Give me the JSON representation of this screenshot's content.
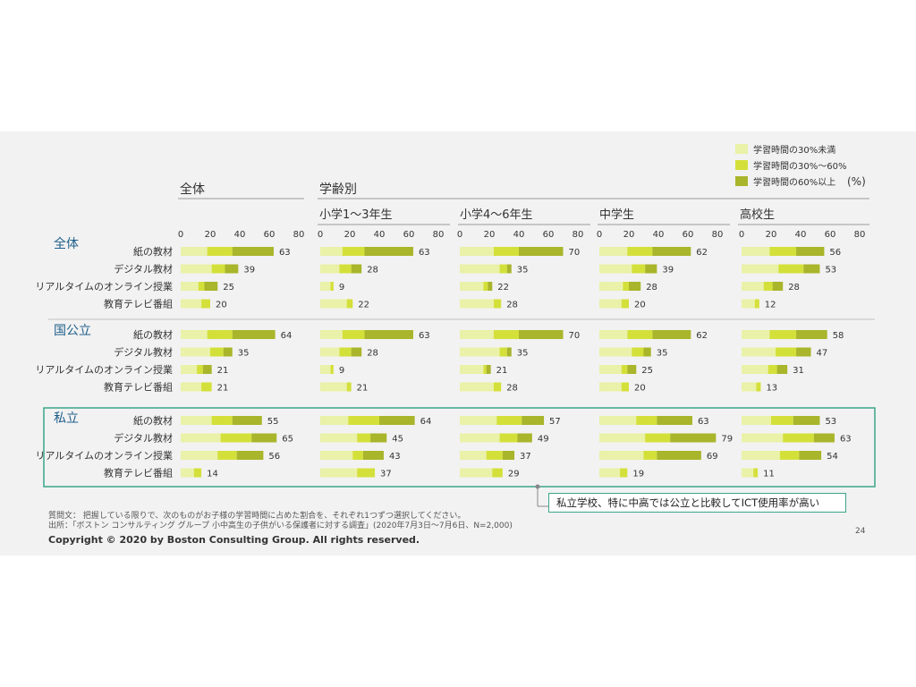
{
  "unit": "(%)",
  "header": {
    "overall": "全体",
    "by_grade": "学齢別"
  },
  "legend": [
    {
      "label": "学習時間の30%未満",
      "color": "#eaf1a8"
    },
    {
      "label": "学習時間の30%〜60%",
      "color": "#d4e03a"
    },
    {
      "label": "学習時間の60%以上",
      "color": "#a9b52a"
    }
  ],
  "callout": "私立学校、特に中高では公立と比較してICT使用率が高い",
  "footer": {
    "question": "質問文： 把握している限りで、次のものがお子様の学習時間に占めた割合を、それぞれ1つずつ選択してください。",
    "source": "出所：「ボストン コンサルティング グループ 小中高生の子供がいる保護者に対する調査」(2020年7月3日〜7月6日、N=2,000)",
    "copyright": "Copyright © 2020 by Boston Consulting Group. All rights reserved.",
    "page": "24"
  },
  "chart_data": {
    "type": "bar",
    "stacked": true,
    "orientation": "horizontal",
    "xlim": [
      0,
      80
    ],
    "ticks": [
      "0",
      "20",
      "40",
      "60",
      "80"
    ],
    "columns": [
      "全体",
      "小学1〜3年生",
      "小学4〜6年生",
      "中学生",
      "高校生"
    ],
    "groups": [
      "全体",
      "国公立",
      "私立"
    ],
    "categories": [
      "紙の教材",
      "デジタル教材",
      "リアルタイムのオンライン授業",
      "教育テレビ番組"
    ],
    "totals": [
      [
        [
          63,
          39,
          25,
          20
        ],
        [
          63,
          28,
          9,
          22
        ],
        [
          70,
          35,
          22,
          28
        ],
        [
          62,
          39,
          28,
          20
        ],
        [
          56,
          53,
          28,
          12
        ]
      ],
      [
        [
          64,
          35,
          21,
          21
        ],
        [
          63,
          28,
          9,
          21
        ],
        [
          70,
          35,
          21,
          28
        ],
        [
          62,
          35,
          25,
          20
        ],
        [
          58,
          47,
          31,
          13
        ]
      ],
      [
        [
          55,
          65,
          56,
          14
        ],
        [
          64,
          45,
          43,
          37
        ],
        [
          57,
          49,
          37,
          29
        ],
        [
          63,
          79,
          69,
          19
        ],
        [
          53,
          63,
          54,
          11
        ]
      ]
    ],
    "segments": [
      [
        [
          [
            18,
            17,
            28
          ],
          [
            21,
            9,
            9
          ],
          [
            12,
            4,
            9
          ],
          [
            14,
            6,
            0
          ]
        ],
        [
          [
            15,
            15,
            33
          ],
          [
            13,
            8,
            7
          ],
          [
            7,
            2,
            0
          ],
          [
            18,
            4,
            0
          ]
        ],
        [
          [
            23,
            17,
            30
          ],
          [
            27,
            5,
            3
          ],
          [
            16,
            3,
            3
          ],
          [
            23,
            5,
            0
          ]
        ],
        [
          [
            19,
            17,
            26
          ],
          [
            22,
            9,
            8
          ],
          [
            16,
            4,
            8
          ],
          [
            15,
            5,
            0
          ]
        ],
        [
          [
            19,
            18,
            19
          ],
          [
            25,
            17,
            11
          ],
          [
            15,
            6,
            7
          ],
          [
            9,
            3,
            0
          ]
        ]
      ],
      [
        [
          [
            18,
            17,
            29
          ],
          [
            20,
            9,
            6
          ],
          [
            11,
            4,
            6
          ],
          [
            14,
            7,
            0
          ]
        ],
        [
          [
            15,
            15,
            33
          ],
          [
            13,
            8,
            7
          ],
          [
            7,
            2,
            0
          ],
          [
            18,
            3,
            0
          ]
        ],
        [
          [
            23,
            17,
            30
          ],
          [
            27,
            5,
            3
          ],
          [
            16,
            2,
            3
          ],
          [
            23,
            5,
            0
          ]
        ],
        [
          [
            19,
            17,
            26
          ],
          [
            22,
            8,
            5
          ],
          [
            15,
            4,
            6
          ],
          [
            15,
            5,
            0
          ]
        ],
        [
          [
            19,
            18,
            21
          ],
          [
            23,
            14,
            10
          ],
          [
            18,
            6,
            7
          ],
          [
            10,
            3,
            0
          ]
        ]
      ],
      [
        [
          [
            21,
            14,
            20
          ],
          [
            27,
            21,
            17
          ],
          [
            25,
            13,
            18
          ],
          [
            9,
            5,
            0
          ]
        ],
        [
          [
            19,
            21,
            24
          ],
          [
            25,
            9,
            11
          ],
          [
            22,
            7,
            14
          ],
          [
            25,
            12,
            0
          ]
        ],
        [
          [
            25,
            17,
            15
          ],
          [
            27,
            12,
            10
          ],
          [
            18,
            11,
            8
          ],
          [
            22,
            7,
            0
          ]
        ],
        [
          [
            25,
            14,
            24
          ],
          [
            31,
            17,
            31
          ],
          [
            30,
            9,
            30
          ],
          [
            14,
            5,
            0
          ]
        ],
        [
          [
            20,
            15,
            18
          ],
          [
            28,
            21,
            14
          ],
          [
            26,
            13,
            15
          ],
          [
            8,
            3,
            0
          ]
        ]
      ]
    ]
  }
}
